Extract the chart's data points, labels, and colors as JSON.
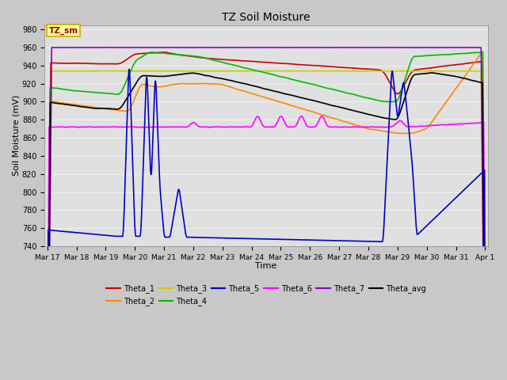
{
  "title": "TZ Soil Moisture",
  "xlabel": "Time",
  "ylabel": "Soil Moisture (mV)",
  "ylim": [
    740,
    985
  ],
  "yticks": [
    740,
    760,
    780,
    800,
    820,
    840,
    860,
    880,
    900,
    920,
    940,
    960,
    980
  ],
  "x_labels": [
    "Mar 17",
    "Mar 18",
    "Mar 19",
    "Mar 20",
    "Mar 21",
    "Mar 22",
    "Mar 23",
    "Mar 24",
    "Mar 25",
    "Mar 26",
    "Mar 27",
    "Mar 28",
    "Mar 29",
    "Mar 30",
    "Mar 31",
    "Apr 1"
  ],
  "colors": {
    "Theta_1": "#cc0000",
    "Theta_2": "#ff8800",
    "Theta_3": "#cccc00",
    "Theta_4": "#00bb00",
    "Theta_5": "#0000cc",
    "Theta_6": "#ff00ff",
    "Theta_7": "#8800cc",
    "Theta_avg": "#000000"
  },
  "fig_bg": "#c8c8c8",
  "plot_bg": "#e0e0e0",
  "grid_color": "#f0f0f0",
  "legend_fc": "#ffff99",
  "legend_ec": "#ccaa00",
  "title_fontsize": 10,
  "axis_fontsize": 8,
  "tick_fontsize": 7,
  "lw": 1.2
}
